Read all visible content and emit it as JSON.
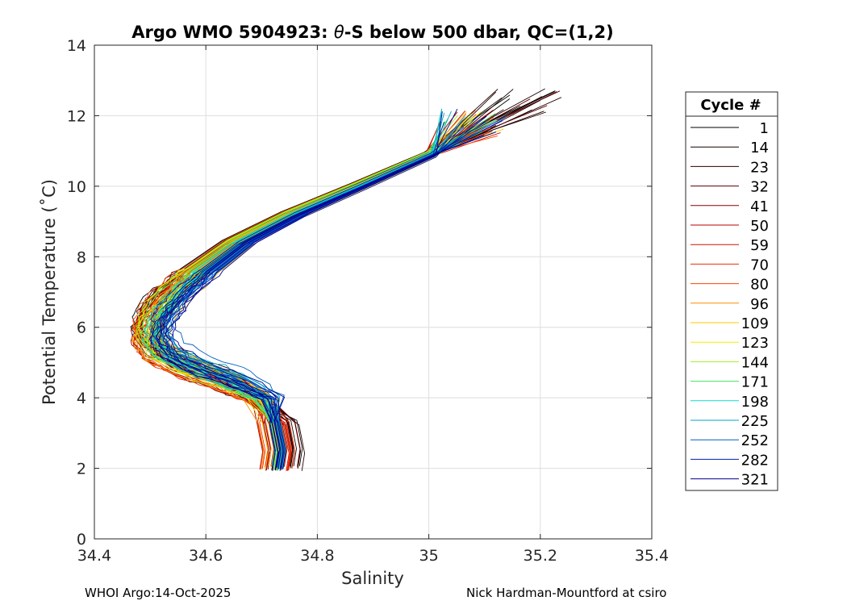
{
  "chart_data": {
    "type": "line",
    "title": "Argo WMO 5904923: θ-S below 500 dbar,  QC=(1,2)",
    "title_prefix": "Argo WMO 5904923: ",
    "title_theta": "θ",
    "title_suffix": "-S below 500 dbar,  QC=(1,2)",
    "xlabel": "Salinity",
    "ylabel": "Potential Temperature (˚C)",
    "xlim": [
      34.4,
      35.4
    ],
    "ylim": [
      0,
      14
    ],
    "xticks": [
      34.4,
      34.6,
      34.8,
      35,
      35.2,
      35.4
    ],
    "xtick_labels": [
      "34.4",
      "34.6",
      "34.8",
      "35",
      "35.2",
      "35.4"
    ],
    "yticks": [
      0,
      2,
      4,
      6,
      8,
      10,
      12,
      14
    ],
    "ytick_labels": [
      "0",
      "2",
      "4",
      "6",
      "8",
      "10",
      "12",
      "14"
    ],
    "grid": true,
    "legend": {
      "title": "Cycle #",
      "position": "right-outside",
      "entries": [
        {
          "label": "1",
          "color": "#000000"
        },
        {
          "label": "14",
          "color": "#1a0000"
        },
        {
          "label": "23",
          "color": "#2a0000"
        },
        {
          "label": "32",
          "color": "#5a0000"
        },
        {
          "label": "41",
          "color": "#8a0000"
        },
        {
          "label": "50",
          "color": "#b80000"
        },
        {
          "label": "59",
          "color": "#d01000"
        },
        {
          "label": "70",
          "color": "#e83000"
        },
        {
          "label": "80",
          "color": "#ff4400"
        },
        {
          "label": "96",
          "color": "#ff8c00"
        },
        {
          "label": "109",
          "color": "#ffc800"
        },
        {
          "label": "123",
          "color": "#f0f000"
        },
        {
          "label": "144",
          "color": "#a0f020"
        },
        {
          "label": "171",
          "color": "#40e860"
        },
        {
          "label": "198",
          "color": "#10d8d0"
        },
        {
          "label": "225",
          "color": "#00a8c8"
        },
        {
          "label": "252",
          "color": "#0060c0"
        },
        {
          "label": "282",
          "color": "#0020b0"
        },
        {
          "label": "321",
          "color": "#000090"
        }
      ]
    },
    "series_template": [
      [
        34.725,
        2.0
      ],
      [
        34.73,
        2.5
      ],
      [
        34.72,
        3.3
      ],
      [
        34.69,
        4.0
      ],
      [
        34.63,
        4.5
      ],
      [
        34.56,
        4.9
      ],
      [
        34.51,
        5.3
      ],
      [
        34.49,
        5.8
      ],
      [
        34.5,
        6.3
      ],
      [
        34.53,
        6.9
      ],
      [
        34.58,
        7.6
      ],
      [
        34.65,
        8.4
      ],
      [
        34.75,
        9.2
      ],
      [
        34.87,
        10.0
      ],
      [
        35.0,
        10.9
      ],
      [
        35.07,
        11.7
      ]
    ]
  },
  "footer": {
    "left": "WHOI Argo:14-Oct-2025",
    "right": "Nick Hardman-Mountford at csiro"
  }
}
